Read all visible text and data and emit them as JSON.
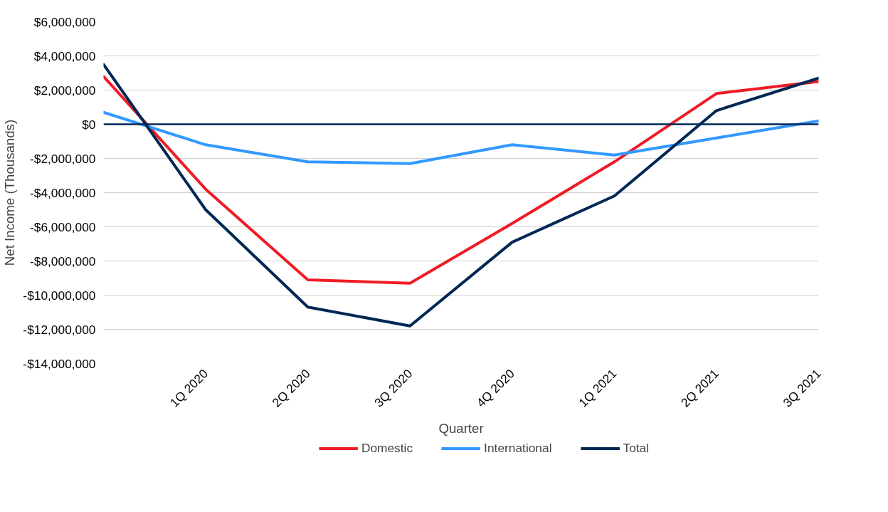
{
  "chart_data": {
    "type": "line",
    "xlabel": "Quarter",
    "ylabel": "Net Income (Thousands)",
    "categories": [
      null,
      "1Q 2020",
      "2Q 2020",
      "3Q 2020",
      "4Q 2020",
      "1Q 2021",
      "2Q 2021",
      "3Q 2021"
    ],
    "series": [
      {
        "name": "Domestic",
        "color": "#ee1c25",
        "values": [
          2800000,
          -3800000,
          -9100000,
          -9300000,
          -5800000,
          -2200000,
          1800000,
          2500000
        ]
      },
      {
        "name": "International",
        "color": "#3399ff",
        "values": [
          700000,
          -1200000,
          -2200000,
          -2300000,
          -1200000,
          -1800000,
          -800000,
          200000
        ]
      },
      {
        "name": "Total",
        "color": "#002855",
        "values": [
          3500000,
          -5000000,
          -10700000,
          -11800000,
          -6900000,
          -4200000,
          800000,
          2700000
        ]
      }
    ],
    "ylim": [
      -14000000,
      6000000
    ],
    "yticks": [
      {
        "value": -14000000,
        "label": "-$14,000,000"
      },
      {
        "value": -12000000,
        "label": "-$12,000,000"
      },
      {
        "value": -10000000,
        "label": "-$10,000,000"
      },
      {
        "value": -8000000,
        "label": "-$8,000,000"
      },
      {
        "value": -6000000,
        "label": "-$6,000,000"
      },
      {
        "value": -4000000,
        "label": "-$4,000,000"
      },
      {
        "value": -2000000,
        "label": "-$2,000,000"
      },
      {
        "value": 0,
        "label": "$0"
      },
      {
        "value": 2000000,
        "label": "$2,000,000"
      },
      {
        "value": 4000000,
        "label": "$4,000,000"
      },
      {
        "value": 6000000,
        "label": "$6,000,000"
      }
    ],
    "ref_lines": [
      {
        "axis": "y",
        "value": 0,
        "color": "#002855"
      }
    ],
    "grid": "y",
    "legend": "bottom",
    "marker": "none",
    "line_style": "solid"
  }
}
